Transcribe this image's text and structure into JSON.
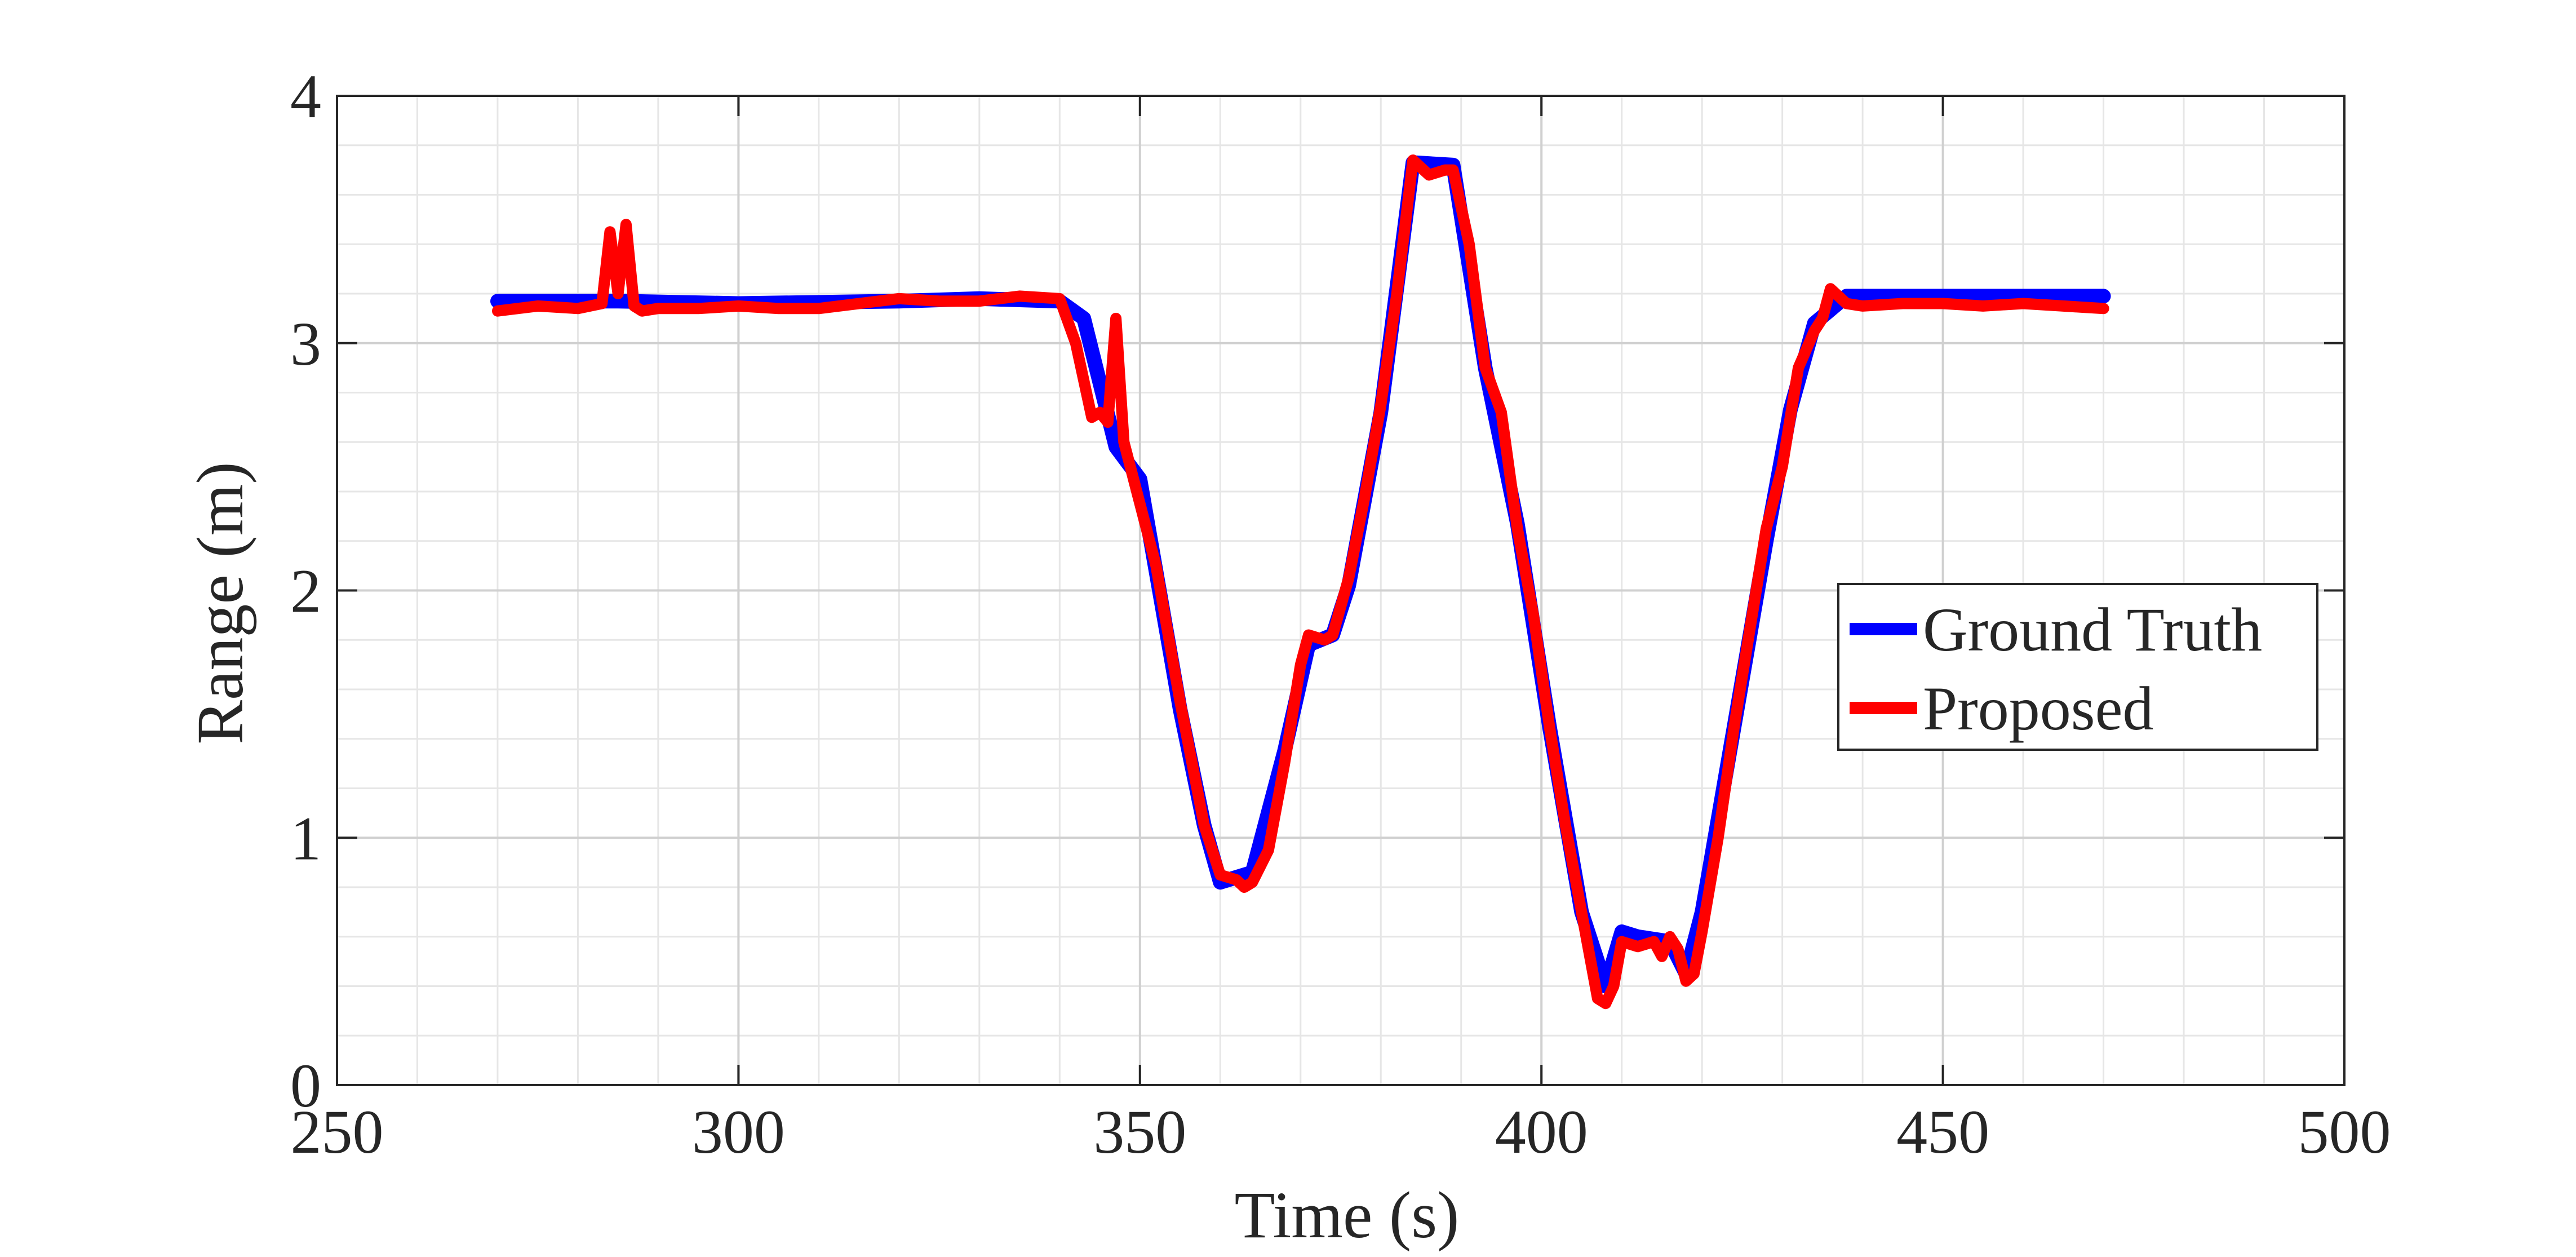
{
  "chart_data": {
    "type": "line",
    "xlabel": "Time (s)",
    "ylabel": "Range (m)",
    "xlim": [
      250,
      500
    ],
    "ylim": [
      0,
      4
    ],
    "x_ticks": [
      250,
      300,
      350,
      400,
      450,
      500
    ],
    "y_ticks": [
      0,
      1,
      2,
      3,
      4
    ],
    "x_tick_labels": [
      "250",
      "300",
      "350",
      "400",
      "450",
      "500"
    ],
    "y_tick_labels": [
      "0",
      "1",
      "2",
      "3",
      "4"
    ],
    "grid": true,
    "minor_grid": true,
    "legend_position": "center-right",
    "series": [
      {
        "name": "Ground Truth",
        "color": "#0000ff",
        "x": [
          270,
          285,
          300,
          320,
          330,
          340,
          343,
          347,
          350,
          355,
          358,
          360,
          364,
          368,
          371,
          374,
          376,
          380,
          384,
          389,
          393,
          397,
          401,
          405,
          408,
          410,
          412,
          416,
          418,
          420,
          424,
          428,
          431,
          434,
          438,
          450,
          470
        ],
        "y": [
          3.17,
          3.17,
          3.16,
          3.17,
          3.18,
          3.17,
          3.1,
          2.58,
          2.45,
          1.52,
          1.05,
          0.82,
          0.86,
          1.35,
          1.78,
          1.82,
          2.02,
          2.72,
          3.73,
          3.72,
          2.9,
          2.27,
          1.45,
          0.7,
          0.4,
          0.62,
          0.6,
          0.58,
          0.45,
          0.7,
          1.45,
          2.2,
          2.73,
          3.08,
          3.19,
          3.19,
          3.19
        ]
      },
      {
        "name": "Proposed",
        "color": "#ff0000",
        "x": [
          270,
          275,
          280,
          283,
          284,
          285,
          286,
          287,
          288,
          290,
          295,
          300,
          305,
          310,
          315,
          320,
          325,
          330,
          335,
          340,
          342,
          344,
          345,
          346,
          347,
          348,
          350,
          352,
          355,
          358,
          360,
          362,
          363,
          364,
          366,
          368,
          370,
          371,
          373,
          374,
          376,
          378,
          380,
          382,
          384,
          386,
          388,
          389,
          391,
          393,
          395,
          397,
          399,
          401,
          403,
          405,
          407,
          408,
          409,
          410,
          412,
          414,
          415,
          416,
          417,
          418,
          419,
          420,
          422,
          424,
          426,
          428,
          430,
          432,
          434,
          435,
          436,
          438,
          440,
          445,
          450,
          455,
          460,
          465,
          470
        ],
        "y": [
          3.13,
          3.15,
          3.14,
          3.16,
          3.45,
          3.2,
          3.48,
          3.15,
          3.13,
          3.14,
          3.14,
          3.15,
          3.14,
          3.14,
          3.16,
          3.18,
          3.17,
          3.17,
          3.19,
          3.18,
          3.0,
          2.7,
          2.72,
          2.68,
          3.1,
          2.6,
          2.35,
          2.1,
          1.55,
          1.05,
          0.85,
          0.83,
          0.8,
          0.82,
          0.95,
          1.3,
          1.7,
          1.82,
          1.8,
          1.82,
          2.05,
          2.38,
          2.75,
          3.2,
          3.74,
          3.68,
          3.7,
          3.7,
          3.4,
          2.9,
          2.72,
          2.25,
          1.9,
          1.45,
          1.05,
          0.7,
          0.35,
          0.33,
          0.4,
          0.58,
          0.56,
          0.58,
          0.52,
          0.6,
          0.55,
          0.42,
          0.45,
          0.62,
          1.0,
          1.45,
          1.85,
          2.25,
          2.5,
          2.9,
          3.05,
          3.1,
          3.22,
          3.16,
          3.15,
          3.16,
          3.16,
          3.15,
          3.16,
          3.15,
          3.14
        ]
      }
    ]
  }
}
